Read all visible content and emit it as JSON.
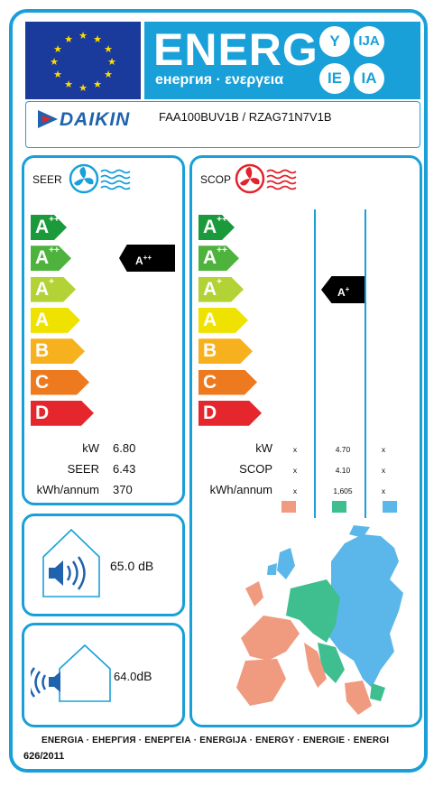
{
  "header": {
    "energy_word": "ENERG",
    "energy_subtitle": "енергия · ενεργεια",
    "lang_circles": [
      "Y",
      "IJA",
      "IE",
      "IA"
    ],
    "brand": "DAIKIN",
    "model": "FAA100BUV1B / RZAG71N7V1B"
  },
  "seer": {
    "title": "SEER",
    "classes": [
      {
        "main": "A",
        "sup": "+++",
        "color": "#1a9a3a"
      },
      {
        "main": "A",
        "sup": "++",
        "color": "#4db33d"
      },
      {
        "main": "A",
        "sup": "+",
        "color": "#b2d235"
      },
      {
        "main": "A",
        "sup": "",
        "color": "#f0e200"
      },
      {
        "main": "B",
        "sup": "",
        "color": "#f7b11e"
      },
      {
        "main": "C",
        "sup": "",
        "color": "#ee7a1f"
      },
      {
        "main": "D",
        "sup": "",
        "color": "#e5262d"
      }
    ],
    "rating": {
      "main": "A",
      "sup": "++"
    },
    "rows": [
      {
        "label": "kW",
        "value": "6.80"
      },
      {
        "label": "SEER",
        "value": "6.43"
      },
      {
        "label": "kWh/annum",
        "value": "370"
      }
    ]
  },
  "scop": {
    "title": "SCOP",
    "rating": {
      "main": "A",
      "sup": "+"
    },
    "rows": [
      {
        "label": "kW",
        "values": [
          "x",
          "4.70",
          "x"
        ]
      },
      {
        "label": "SCOP",
        "values": [
          "x",
          "4.10",
          "x"
        ]
      },
      {
        "label": "kWh/annum",
        "values": [
          "x",
          "1,605",
          "x"
        ]
      }
    ],
    "zone_colors": [
      "#f09a80",
      "#3fbf8f",
      "#5bb7ea"
    ]
  },
  "noise": {
    "indoor": "65.0 dB",
    "outdoor_value": "64.0",
    "outdoor_unit": "dB"
  },
  "footer": {
    "languages": "ENERGIA · ЕНЕРГИЯ · ΕΝΕΡΓΕΙΑ · ENERGIJA · ENERGY · ENERGIE · ENERGI",
    "regulation": "626/2011"
  },
  "icons": [
    "eu-flag-icon",
    "fan-cold-icon",
    "fan-warm-icon",
    "speaker-icon",
    "europe-map-icon"
  ]
}
